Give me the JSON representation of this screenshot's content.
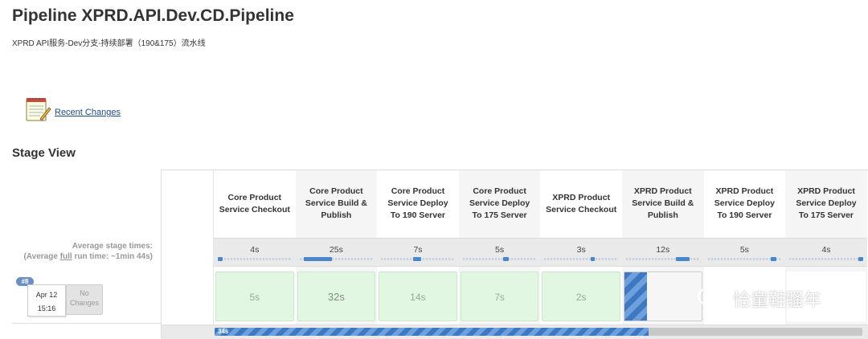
{
  "page": {
    "title": "Pipeline XPRD.API.Dev.CD.Pipeline",
    "subtitle": "XPRD API服务-Dev分支-持续部署（190&175）流水线"
  },
  "links": {
    "recent_changes": "Recent Changes"
  },
  "stage_view": {
    "title": "Stage View",
    "average_label_line1": "Average stage times:",
    "average_label_prefix": "(Average ",
    "average_label_full": "full",
    "average_label_suffix": " run time: ~1min 44s)",
    "stages": [
      {
        "name": "Core Product Service Checkout",
        "avg": "4s",
        "avg_fraction": 0.04,
        "run_time": "5s"
      },
      {
        "name": "Core Product Service Build & Publish",
        "avg": "25s",
        "avg_fraction": 0.24,
        "run_time": "32s"
      },
      {
        "name": "Core Product Service Deploy To 190 Server",
        "avg": "7s",
        "avg_fraction": 0.07,
        "run_time": "14s"
      },
      {
        "name": "Core Product Service Deploy To 175 Server",
        "avg": "5s",
        "avg_fraction": 0.05,
        "run_time": "7s"
      },
      {
        "name": "XPRD Product Service Checkout",
        "avg": "3s",
        "avg_fraction": 0.03,
        "run_time": "2s"
      },
      {
        "name": "XPRD Product Service Build & Publish",
        "avg": "12s",
        "avg_fraction": 0.12,
        "run_time": ""
      },
      {
        "name": "XPRD Product Service Deploy To 190 Server",
        "avg": "5s",
        "avg_fraction": 0.05,
        "run_time": ""
      },
      {
        "name": "XPRD Product Service Deploy To 175 Server",
        "avg": "4s",
        "avg_fraction": 0.04,
        "run_time": ""
      }
    ]
  },
  "run": {
    "badge": "#8",
    "date": "Apr 12",
    "time": "15:16",
    "changes": "No Changes",
    "progress_label": "34s",
    "progress_fraction": 0.67
  },
  "watermark": {
    "text": "恰童鞋骚年"
  },
  "colors": {
    "success_bg": "#e1f7e1",
    "running_blue": "#3d78c1",
    "link": "#204a87"
  }
}
